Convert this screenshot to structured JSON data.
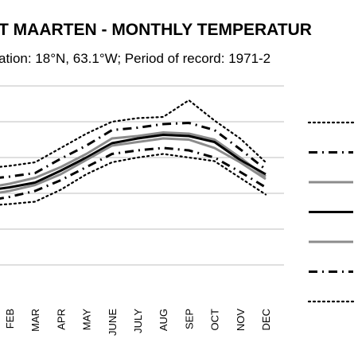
{
  "chart_data": {
    "type": "line",
    "title": "T MAARTEN - MONTHLY TEMPERATUR",
    "subtitle": "ation: 18°N, 63.1°W; Period of record: 1971-2",
    "xlabel": "",
    "ylabel": "",
    "categories": [
      "FEB",
      "MAR",
      "APR",
      "MAY",
      "JUNE",
      "JULY",
      "AUG",
      "SEP",
      "OCT",
      "NOV",
      "DEC"
    ],
    "ylim": [
      16,
      34
    ],
    "grid": true,
    "legend": "right",
    "series": [
      {
        "style": "dotted",
        "color": "#000000",
        "values": [
          27.3,
          27.6,
          28.8,
          30.0,
          31.0,
          31.3,
          31.4,
          32.8,
          31.1,
          29.6,
          27.6
        ]
      },
      {
        "style": "dash-dot",
        "color": "#000000",
        "values": [
          26.4,
          26.7,
          27.9,
          29.0,
          30.3,
          30.5,
          30.8,
          30.9,
          30.3,
          28.7,
          27.0
        ]
      },
      {
        "style": "solid",
        "color": "#8c8c8c",
        "values": [
          25.8,
          26.3,
          27.2,
          28.3,
          29.6,
          29.8,
          30.1,
          30.0,
          29.5,
          28.0,
          26.4
        ]
      },
      {
        "style": "solid",
        "color": "#000000",
        "values": [
          25.5,
          25.9,
          26.9,
          28.0,
          29.2,
          29.6,
          29.9,
          29.8,
          29.3,
          27.8,
          26.6
        ]
      },
      {
        "style": "solid",
        "color": "#8c8c8c",
        "values": [
          25.2,
          25.7,
          26.6,
          27.8,
          29.0,
          29.3,
          29.6,
          29.5,
          28.8,
          27.6,
          26.2
        ]
      },
      {
        "style": "dash-dot",
        "color": "#000000",
        "values": [
          24.7,
          25.2,
          26.1,
          27.2,
          28.3,
          28.6,
          28.8,
          28.6,
          28.0,
          26.8,
          25.5
        ]
      },
      {
        "style": "dotted",
        "color": "#000000",
        "values": [
          24.1,
          24.3,
          25.3,
          26.6,
          27.6,
          28.0,
          28.3,
          28.0,
          27.7,
          26.3,
          24.9
        ]
      }
    ]
  }
}
